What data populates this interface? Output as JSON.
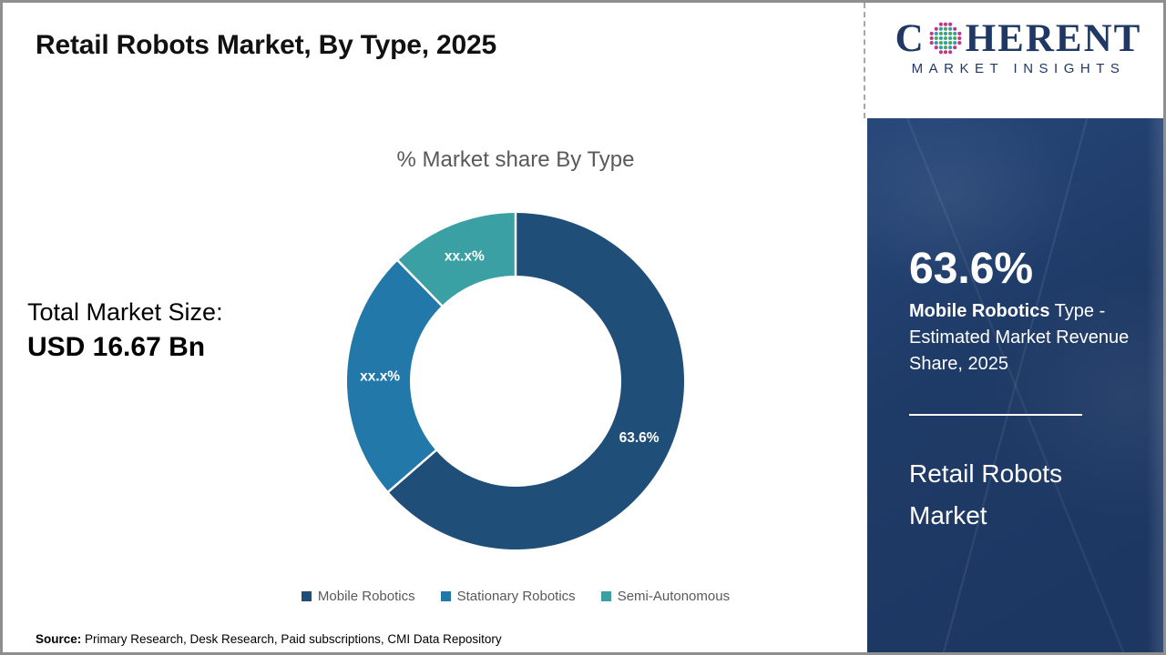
{
  "page": {
    "title": "Retail Robots Market, By Type, 2025"
  },
  "logo": {
    "word_start": "C",
    "word_end": "HERENT",
    "subtitle": "MARKET INSIGHTS",
    "navy": "#1F3864",
    "globe_colors": {
      "outer": "#c0388a",
      "mid": "#2f9fae",
      "inner": "#4fa651"
    }
  },
  "left_stats": {
    "label": "Total Market Size:",
    "value": "USD 16.67 Bn"
  },
  "chart_data": {
    "type": "pie",
    "subtype": "donut",
    "title": "% Market share By Type",
    "outer_radius": 185,
    "inner_radius": 116,
    "label_radius": 149,
    "start_angle_deg": 0,
    "direction": "clockwise",
    "legend_position": "bottom",
    "slices": [
      {
        "name": "Mobile Robotics",
        "display": "63.6%",
        "value": 63.6,
        "color": "#1F4E79"
      },
      {
        "name": "Stationary Robotics",
        "display": "xx.x%",
        "value": 24.1,
        "color": "#2278A8"
      },
      {
        "name": "Semi-Autonomous",
        "display": "xx.x%",
        "value": 12.3,
        "color": "#3BA0A4"
      }
    ]
  },
  "side_panel": {
    "stat_value": "63.6%",
    "stat_label_bold": "Mobile Robotics",
    "stat_label_rest": " Type - Estimated Market Revenue Share, 2025",
    "panel_title": "Retail Robots Market",
    "background": "#1e3a66"
  },
  "source": {
    "label": "Source:",
    "text": " Primary Research, Desk Research, Paid subscriptions, CMI Data Repository"
  }
}
